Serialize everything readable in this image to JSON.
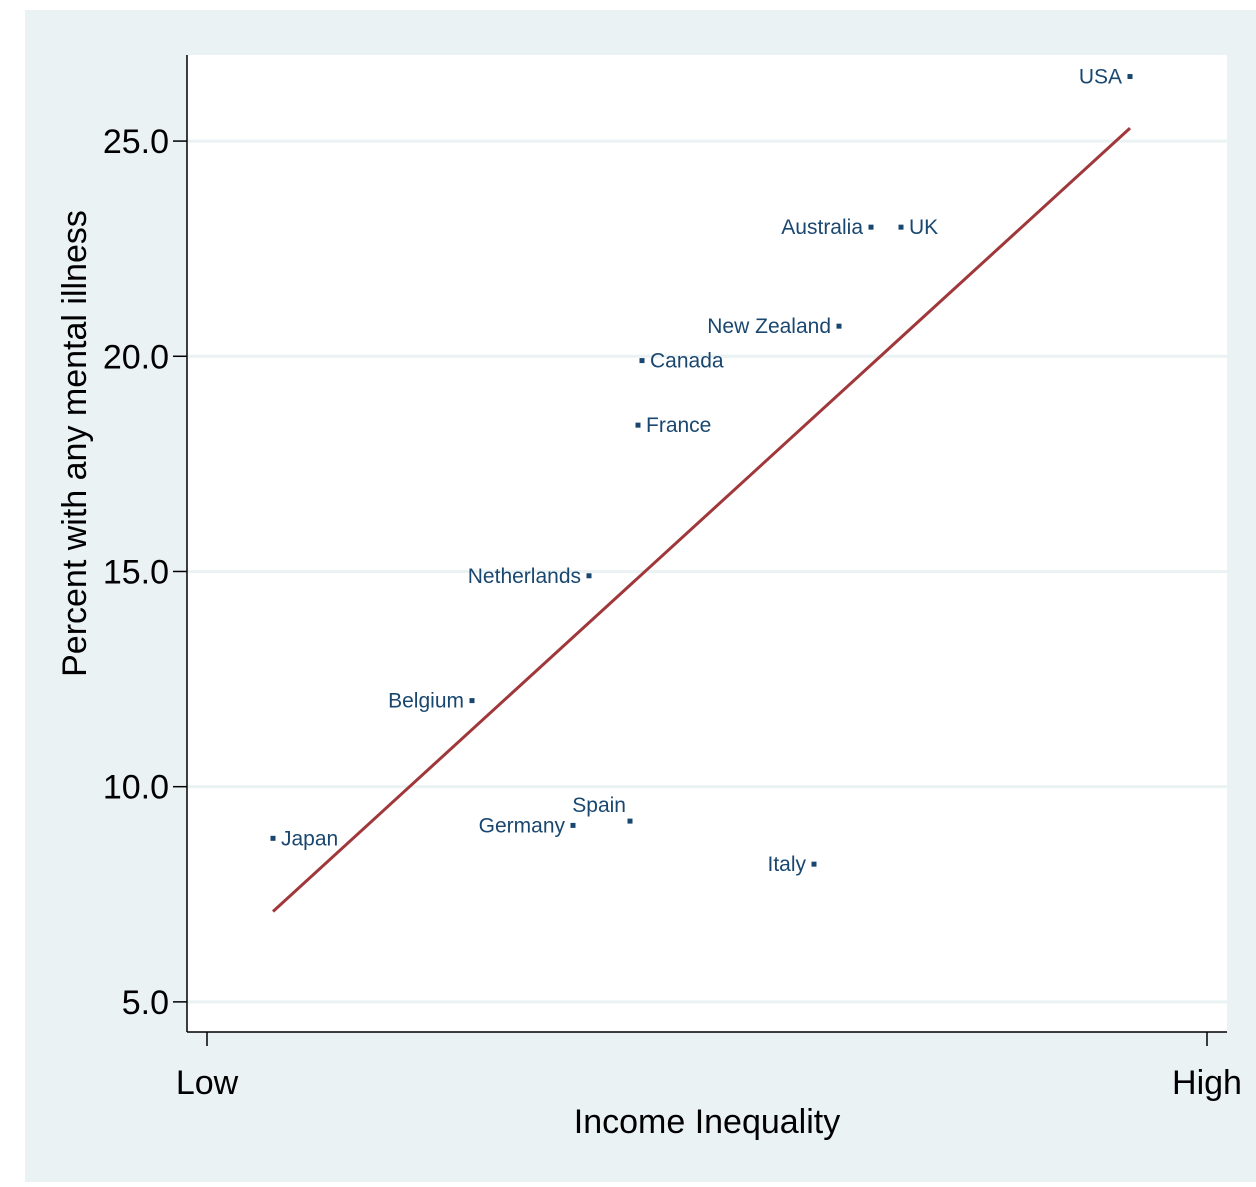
{
  "chart_data": {
    "type": "scatter",
    "title": "",
    "xlabel": "Income Inequality",
    "ylabel": "Percent with any mental illness",
    "x_tick_labels": [
      "Low",
      "High"
    ],
    "xlim": [
      0,
      1
    ],
    "ylim": [
      4.3,
      27.0
    ],
    "yticks": [
      {
        "value": 5,
        "label": "5.0"
      },
      {
        "value": 10,
        "label": "10.0"
      },
      {
        "value": 15,
        "label": "15.0"
      },
      {
        "value": 20,
        "label": "20.0"
      },
      {
        "value": 25,
        "label": "25.0"
      }
    ],
    "grid": true,
    "points": [
      {
        "label": "Japan",
        "x": 0.066,
        "y": 8.8,
        "label_side": "right"
      },
      {
        "label": "Belgium",
        "x": 0.265,
        "y": 12.0,
        "label_side": "left"
      },
      {
        "label": "Germany",
        "x": 0.366,
        "y": 9.1,
        "label_side": "left"
      },
      {
        "label": "Spain",
        "x": 0.423,
        "y": 9.2,
        "label_side": "above"
      },
      {
        "label": "Netherlands",
        "x": 0.382,
        "y": 14.9,
        "label_side": "left"
      },
      {
        "label": "France",
        "x": 0.431,
        "y": 18.4,
        "label_side": "right"
      },
      {
        "label": "Canada",
        "x": 0.435,
        "y": 19.9,
        "label_side": "right"
      },
      {
        "label": "Italy",
        "x": 0.607,
        "y": 8.2,
        "label_side": "left"
      },
      {
        "label": "New Zealand",
        "x": 0.632,
        "y": 20.7,
        "label_side": "left"
      },
      {
        "label": "Australia",
        "x": 0.664,
        "y": 23.0,
        "label_side": "left"
      },
      {
        "label": "UK",
        "x": 0.694,
        "y": 23.0,
        "label_side": "right"
      },
      {
        "label": "USA",
        "x": 0.923,
        "y": 26.5,
        "label_side": "left"
      }
    ],
    "fit_line": {
      "x": [
        0.066,
        0.923
      ],
      "y": [
        7.1,
        25.3
      ]
    },
    "colors": {
      "background": "#eaf2f3",
      "plot_background": "#ffffff",
      "grid": "#eaf2f3",
      "points": "#1a476f",
      "fit_line": "#a0373a",
      "axis": "#000000"
    }
  }
}
